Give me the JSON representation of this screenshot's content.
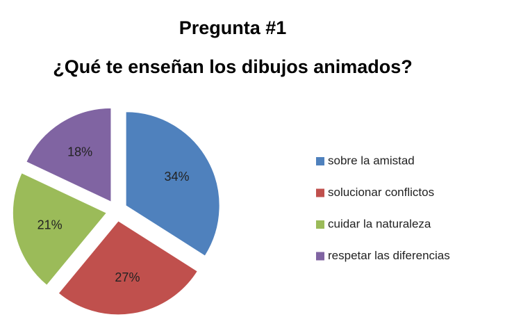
{
  "chart_data": {
    "type": "pie",
    "title": "Pregunta #1",
    "subtitle": "¿Qué te enseñan los dibujos animados?",
    "categories": [
      "sobre la amistad",
      "solucionar conflictos",
      "cuidar la naturaleza",
      "respetar las diferencias"
    ],
    "values": [
      34,
      27,
      21,
      18
    ],
    "value_labels": [
      "34%",
      "27%",
      "21%",
      "18%"
    ],
    "colors": [
      "#4f81bd",
      "#c0504d",
      "#9bbb59",
      "#8064a2"
    ],
    "legend": "right"
  }
}
